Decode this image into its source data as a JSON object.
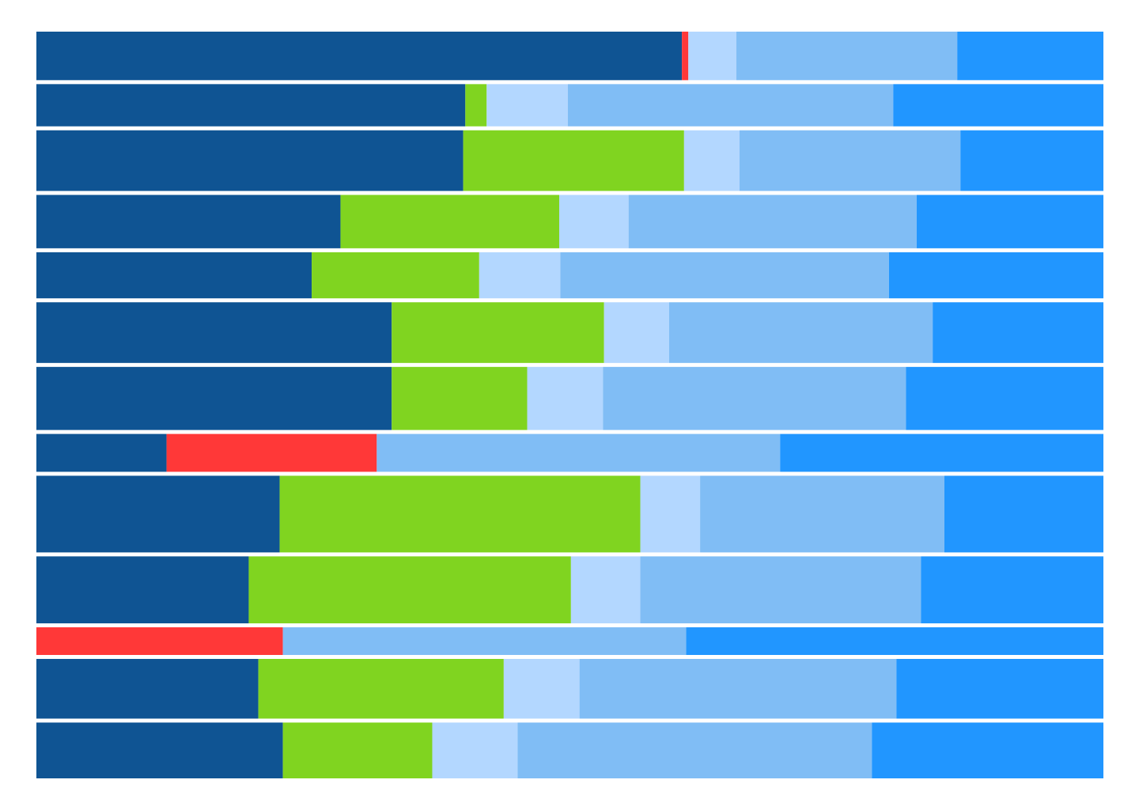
{
  "chart_data": {
    "type": "bar",
    "orientation": "horizontal",
    "stacked": true,
    "normalized": true,
    "title": "",
    "xlabel": "",
    "ylabel": "",
    "grid": false,
    "legend": "none",
    "rows": [
      {
        "weight": 1.0,
        "segments": [
          {
            "color": "#0f5493",
            "value": 60.5
          },
          {
            "color": "#ff3838",
            "value": 0.6
          },
          {
            "color": "#b3d7ff",
            "value": 4.5
          },
          {
            "color": "#80bdf5",
            "value": 20.7
          },
          {
            "color": "#2196ff",
            "value": 13.7
          }
        ]
      },
      {
        "weight": 0.87,
        "segments": [
          {
            "color": "#0f5493",
            "value": 40.2
          },
          {
            "color": "#80d420",
            "value": 2.0
          },
          {
            "color": "#b3d7ff",
            "value": 7.6
          },
          {
            "color": "#80bdf5",
            "value": 30.5
          },
          {
            "color": "#2196ff",
            "value": 19.7
          }
        ]
      },
      {
        "weight": 1.25,
        "segments": [
          {
            "color": "#0f5493",
            "value": 40.0
          },
          {
            "color": "#80d420",
            "value": 20.7
          },
          {
            "color": "#b3d7ff",
            "value": 5.2
          },
          {
            "color": "#80bdf5",
            "value": 20.7
          },
          {
            "color": "#2196ff",
            "value": 13.4
          }
        ]
      },
      {
        "weight": 1.1,
        "segments": [
          {
            "color": "#0f5493",
            "value": 28.5
          },
          {
            "color": "#80d420",
            "value": 20.5
          },
          {
            "color": "#b3d7ff",
            "value": 6.5
          },
          {
            "color": "#80bdf5",
            "value": 27.0
          },
          {
            "color": "#2196ff",
            "value": 17.5
          }
        ]
      },
      {
        "weight": 0.95,
        "segments": [
          {
            "color": "#0f5493",
            "value": 25.8
          },
          {
            "color": "#80d420",
            "value": 15.7
          },
          {
            "color": "#b3d7ff",
            "value": 7.6
          },
          {
            "color": "#80bdf5",
            "value": 30.8
          },
          {
            "color": "#2196ff",
            "value": 20.1
          }
        ]
      },
      {
        "weight": 1.25,
        "segments": [
          {
            "color": "#0f5493",
            "value": 33.3
          },
          {
            "color": "#80d420",
            "value": 19.9
          },
          {
            "color": "#b3d7ff",
            "value": 6.1
          },
          {
            "color": "#80bdf5",
            "value": 24.7
          },
          {
            "color": "#2196ff",
            "value": 16.0
          }
        ]
      },
      {
        "weight": 1.3,
        "segments": [
          {
            "color": "#0f5493",
            "value": 33.3
          },
          {
            "color": "#80d420",
            "value": 12.7
          },
          {
            "color": "#b3d7ff",
            "value": 7.1
          },
          {
            "color": "#80bdf5",
            "value": 28.4
          },
          {
            "color": "#2196ff",
            "value": 18.5
          }
        ]
      },
      {
        "weight": 0.78,
        "segments": [
          {
            "color": "#0f5493",
            "value": 12.2
          },
          {
            "color": "#ff3838",
            "value": 19.7
          },
          {
            "color": "#80bdf5",
            "value": 37.8
          },
          {
            "color": "#2196ff",
            "value": 30.3
          }
        ]
      },
      {
        "weight": 1.58,
        "segments": [
          {
            "color": "#0f5493",
            "value": 22.8
          },
          {
            "color": "#80d420",
            "value": 33.8
          },
          {
            "color": "#b3d7ff",
            "value": 5.6
          },
          {
            "color": "#80bdf5",
            "value": 22.9
          },
          {
            "color": "#2196ff",
            "value": 14.9
          }
        ]
      },
      {
        "weight": 1.38,
        "segments": [
          {
            "color": "#0f5493",
            "value": 19.9
          },
          {
            "color": "#80d420",
            "value": 30.2
          },
          {
            "color": "#b3d7ff",
            "value": 6.5
          },
          {
            "color": "#80bdf5",
            "value": 26.3
          },
          {
            "color": "#2196ff",
            "value": 17.1
          }
        ]
      },
      {
        "weight": 0.57,
        "segments": [
          {
            "color": "#ff3838",
            "value": 23.1
          },
          {
            "color": "#80bdf5",
            "value": 37.8
          },
          {
            "color": "#2196ff",
            "value": 39.1
          }
        ]
      },
      {
        "weight": 1.23,
        "segments": [
          {
            "color": "#0f5493",
            "value": 20.8
          },
          {
            "color": "#80d420",
            "value": 23.0
          },
          {
            "color": "#b3d7ff",
            "value": 7.1
          },
          {
            "color": "#80bdf5",
            "value": 29.7
          },
          {
            "color": "#2196ff",
            "value": 19.4
          }
        ]
      },
      {
        "weight": 1.15,
        "segments": [
          {
            "color": "#0f5493",
            "value": 23.1
          },
          {
            "color": "#80d420",
            "value": 14.0
          },
          {
            "color": "#b3d7ff",
            "value": 8.0
          },
          {
            "color": "#80bdf5",
            "value": 33.2
          },
          {
            "color": "#2196ff",
            "value": 21.7
          }
        ]
      }
    ]
  }
}
